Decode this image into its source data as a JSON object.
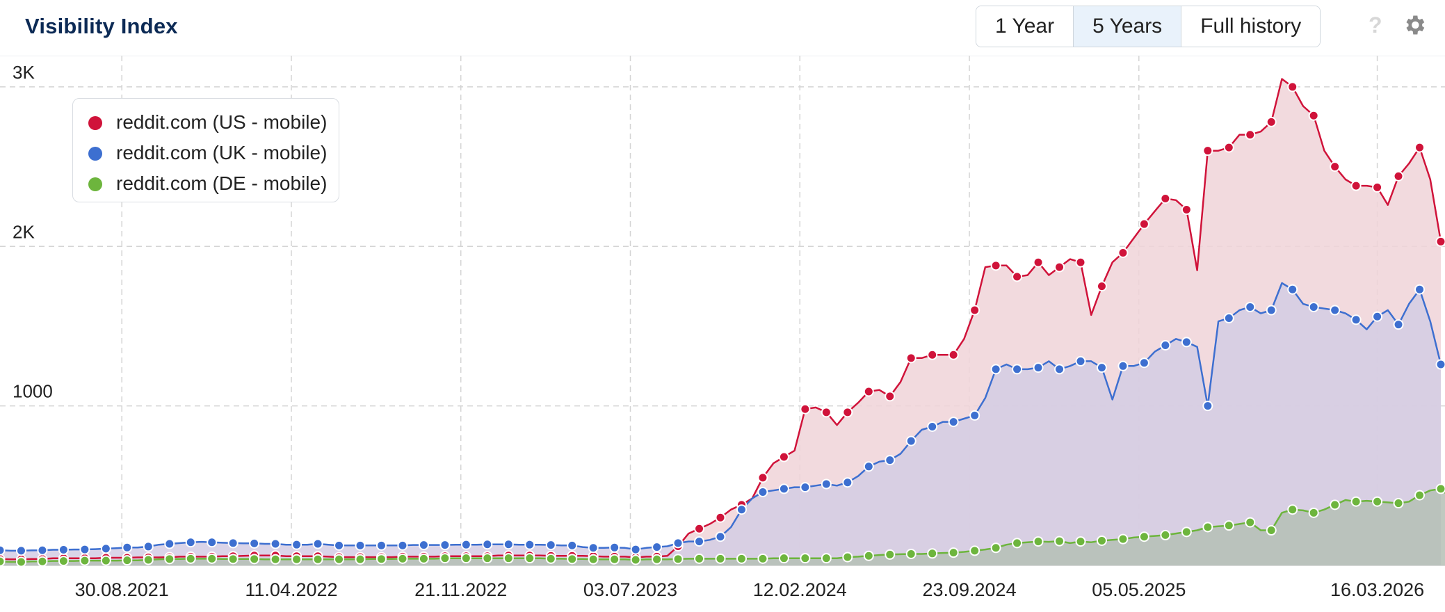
{
  "header": {
    "title": "Visibility Index",
    "ranges": [
      "1 Year",
      "5 Years",
      "Full history"
    ],
    "active_range": "5 Years",
    "help_label": "?"
  },
  "chart_data": {
    "type": "area",
    "xlabel": "",
    "ylabel": "",
    "x_tick_labels": [
      "30.08.2021",
      "11.04.2022",
      "21.11.2022",
      "03.07.2023",
      "12.02.2024",
      "23.09.2024",
      "05.05.2025",
      "16.03.2026"
    ],
    "y_ticks": [
      {
        "value": 1000,
        "label": "1000"
      },
      {
        "value": 2000,
        "label": "2K"
      },
      {
        "value": 3000,
        "label": "3K"
      }
    ],
    "ylim": [
      0,
      3100
    ],
    "grid": true,
    "legend_position": "top-left",
    "x_start": "2021-03-22",
    "x_step_days": 14,
    "series": [
      {
        "name": "reddit.com (US - mobile)",
        "color": "#d0133a",
        "fill": "#f0d4d8",
        "values": [
          40,
          38,
          38,
          40,
          40,
          45,
          45,
          45,
          45,
          45,
          48,
          48,
          48,
          50,
          50,
          50,
          52,
          55,
          55,
          55,
          55,
          58,
          58,
          60,
          62,
          62,
          62,
          58,
          58,
          58,
          58,
          55,
          52,
          52,
          52,
          52,
          52,
          52,
          55,
          55,
          55,
          55,
          58,
          58,
          58,
          58,
          58,
          62,
          62,
          62,
          62,
          62,
          60,
          60,
          60,
          60,
          58,
          55,
          55,
          55,
          50,
          55,
          55,
          60,
          120,
          200,
          230,
          260,
          300,
          350,
          380,
          420,
          550,
          640,
          680,
          720,
          980,
          990,
          960,
          880,
          960,
          1020,
          1090,
          1100,
          1060,
          1150,
          1300,
          1300,
          1320,
          1320,
          1320,
          1420,
          1600,
          1870,
          1880,
          1880,
          1810,
          1820,
          1900,
          1820,
          1870,
          1920,
          1900,
          1570,
          1750,
          1900,
          1960,
          2050,
          2140,
          2220,
          2300,
          2290,
          2230,
          1850,
          2600,
          2600,
          2620,
          2700,
          2700,
          2720,
          2780,
          3050,
          3000,
          2880,
          2820,
          2600,
          2500,
          2420,
          2380,
          2380,
          2370,
          2260,
          2440,
          2520,
          2620,
          2420,
          2030
        ]
      },
      {
        "name": "reddit.com (UK - mobile)",
        "color": "#3d6fd0",
        "fill": "#d4cde4",
        "values": [
          95,
          92,
          92,
          94,
          95,
          98,
          98,
          100,
          100,
          102,
          105,
          108,
          112,
          112,
          118,
          130,
          135,
          140,
          145,
          148,
          145,
          142,
          140,
          138,
          138,
          135,
          135,
          130,
          130,
          130,
          135,
          130,
          125,
          125,
          125,
          125,
          125,
          125,
          125,
          128,
          128,
          128,
          128,
          130,
          130,
          130,
          132,
          132,
          132,
          130,
          130,
          130,
          128,
          125,
          125,
          115,
          110,
          110,
          112,
          110,
          100,
          110,
          115,
          120,
          140,
          150,
          150,
          160,
          180,
          240,
          350,
          420,
          460,
          470,
          480,
          490,
          490,
          500,
          510,
          500,
          520,
          560,
          620,
          650,
          660,
          700,
          780,
          850,
          870,
          900,
          900,
          920,
          940,
          1050,
          1230,
          1260,
          1230,
          1230,
          1240,
          1280,
          1230,
          1250,
          1280,
          1280,
          1240,
          1040,
          1250,
          1250,
          1270,
          1340,
          1380,
          1420,
          1400,
          1370,
          1000,
          1530,
          1550,
          1600,
          1620,
          1580,
          1600,
          1770,
          1730,
          1640,
          1620,
          1610,
          1600,
          1580,
          1540,
          1480,
          1560,
          1600,
          1510,
          1640,
          1730,
          1530,
          1260
        ]
      },
      {
        "name": "reddit.com (DE - mobile)",
        "color": "#6db53d",
        "fill": "#b5bfb5",
        "values": [
          25,
          22,
          22,
          25,
          25,
          28,
          28,
          28,
          30,
          30,
          30,
          30,
          32,
          32,
          35,
          38,
          40,
          40,
          42,
          42,
          42,
          40,
          40,
          40,
          40,
          38,
          38,
          38,
          38,
          38,
          38,
          38,
          38,
          38,
          38,
          40,
          40,
          40,
          42,
          42,
          42,
          42,
          45,
          45,
          45,
          45,
          45,
          45,
          45,
          45,
          45,
          45,
          42,
          42,
          40,
          40,
          38,
          38,
          38,
          38,
          35,
          38,
          38,
          38,
          40,
          42,
          42,
          42,
          42,
          42,
          42,
          42,
          42,
          45,
          45,
          45,
          45,
          45,
          45,
          45,
          52,
          55,
          60,
          65,
          68,
          70,
          72,
          72,
          75,
          78,
          80,
          85,
          92,
          100,
          110,
          130,
          140,
          145,
          150,
          148,
          152,
          140,
          150,
          145,
          155,
          160,
          165,
          175,
          180,
          185,
          190,
          200,
          210,
          220,
          240,
          245,
          250,
          260,
          270,
          220,
          220,
          330,
          350,
          345,
          330,
          350,
          380,
          410,
          400,
          405,
          400,
          395,
          390,
          400,
          440,
          470,
          480,
          420
        ]
      }
    ]
  }
}
